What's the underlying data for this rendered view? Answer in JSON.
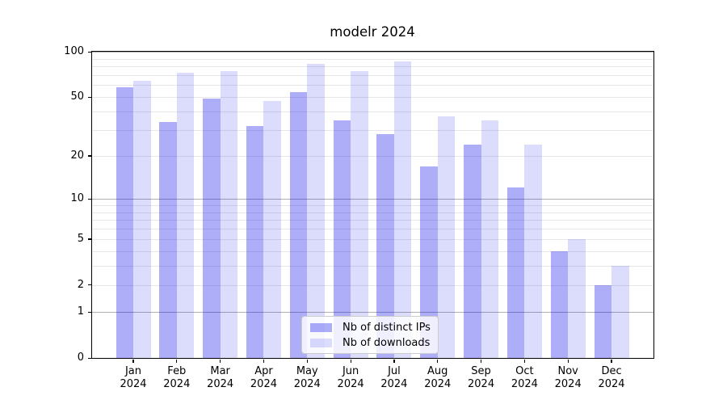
{
  "chart_data": {
    "type": "bar",
    "title": "modelr 2024",
    "categories": [
      "Jan",
      "Feb",
      "Mar",
      "Apr",
      "May",
      "Jun",
      "Jul",
      "Aug",
      "Sep",
      "Oct",
      "Nov",
      "Dec"
    ],
    "year_label": "2024",
    "series": [
      {
        "name": "Nb of distinct IPs",
        "color": "rgba(8,8,235,0.335)",
        "values": [
          58,
          34,
          49,
          32,
          54,
          35,
          28,
          17,
          24,
          12,
          4,
          2
        ]
      },
      {
        "name": "Nb of downloads",
        "color": "rgba(8,8,235,0.14)",
        "values": [
          64,
          73,
          74,
          47,
          83,
          74,
          86,
          37,
          35,
          24,
          5,
          3
        ]
      }
    ],
    "y_axis": {
      "scale": "log1p",
      "tick_labels": [
        0,
        1,
        2,
        5,
        10,
        20,
        50,
        100
      ],
      "major_gridlines": [
        1,
        10,
        100
      ],
      "minor_gridlines": [
        2,
        3,
        4,
        5,
        6,
        7,
        8,
        9,
        20,
        30,
        40,
        50,
        60,
        70,
        80,
        90
      ],
      "ylim": [
        0,
        102
      ]
    },
    "xlabel": "",
    "ylabel": "",
    "grid": true,
    "legend": {
      "position": "lower center",
      "entries": [
        "Nb of distinct IPs",
        "Nb of downloads"
      ]
    },
    "colors": {
      "bar_distinct_ips": "rgba(8,8,235,0.335)",
      "bar_downloads": "rgba(8,8,235,0.14)",
      "major_grid": "#b0b0b0",
      "minor_grid": "#e7e7e7",
      "axis": "#000000",
      "background": "#ffffff"
    }
  }
}
